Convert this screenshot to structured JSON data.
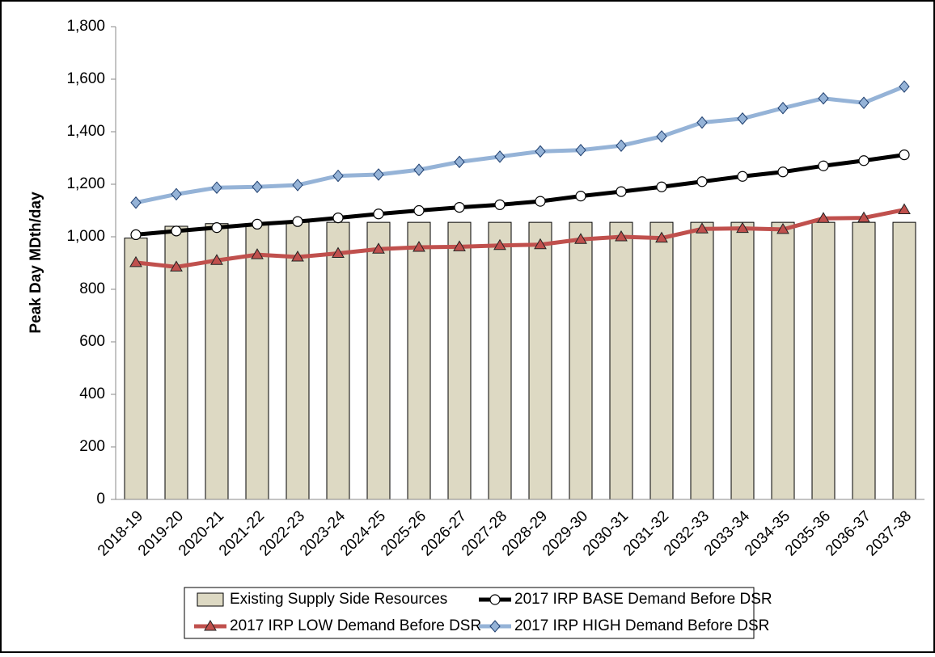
{
  "chart_data": {
    "type": "bar",
    "y_label": "Peak Day MDth/day",
    "categories": [
      "2018-19",
      "2019-20",
      "2020-21",
      "2021-22",
      "2022-23",
      "2023-24",
      "2024-25",
      "2025-26",
      "2026-27",
      "2027-28",
      "2028-29",
      "2029-30",
      "2030-31",
      "2031-32",
      "2032-33",
      "2033-34",
      "2034-35",
      "2035-36",
      "2036-37",
      "2037-38"
    ],
    "series": [
      {
        "name": "Existing Supply Side Resources",
        "type": "bar",
        "color": "#ddd9c3",
        "values": [
          995,
          1040,
          1050,
          1050,
          1055,
          1055,
          1055,
          1055,
          1055,
          1055,
          1055,
          1055,
          1055,
          1055,
          1055,
          1055,
          1055,
          1055,
          1055,
          1055
        ]
      },
      {
        "name": "2017 IRP BASE Demand Before DSR",
        "type": "line",
        "marker": "circle",
        "color": "#000000",
        "values": [
          1008,
          1022,
          1035,
          1048,
          1058,
          1072,
          1087,
          1100,
          1112,
          1122,
          1135,
          1155,
          1172,
          1190,
          1210,
          1230,
          1247,
          1270,
          1290,
          1312
        ]
      },
      {
        "name": "2017 IRP LOW Demand Before DSR",
        "type": "line",
        "marker": "triangle",
        "color": "#c0504d",
        "values": [
          902,
          885,
          910,
          932,
          923,
          937,
          953,
          960,
          962,
          967,
          970,
          990,
          1000,
          995,
          1030,
          1032,
          1028,
          1070,
          1072,
          1103
        ]
      },
      {
        "name": "2017 IRP HIGH Demand Before DSR",
        "type": "line",
        "marker": "diamond",
        "color": "#95b3d7",
        "values": [
          1130,
          1162,
          1187,
          1190,
          1197,
          1232,
          1237,
          1255,
          1285,
          1305,
          1325,
          1330,
          1347,
          1382,
          1435,
          1450,
          1490,
          1527,
          1510,
          1572
        ]
      }
    ],
    "ylim": [
      0,
      1800
    ],
    "yticks": [
      0,
      200,
      400,
      600,
      800,
      {
        "value": 1000,
        "label": "1,000"
      },
      {
        "value": 1200,
        "label": "1,200"
      },
      {
        "value": 1400,
        "label": "1,400"
      },
      {
        "value": 1600,
        "label": "1,600"
      },
      {
        "value": 1800,
        "label": "1,800"
      }
    ],
    "grid": false,
    "legend": "bottom"
  }
}
